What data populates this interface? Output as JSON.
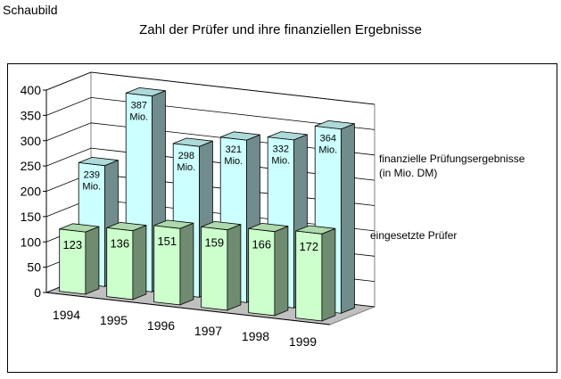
{
  "caption": "Schaubild",
  "chart_data": {
    "type": "bar",
    "title": "Zahl der Prüfer und ihre finanziellen Ergebnisse",
    "categories": [
      "1994",
      "1995",
      "1996",
      "1997",
      "1998",
      "1999"
    ],
    "ylim": [
      0,
      400
    ],
    "yticks": [
      "0",
      "50",
      "100",
      "150",
      "200",
      "250",
      "300",
      "350",
      "400"
    ],
    "series": [
      {
        "name": "finanzielle Prüfungsergebnisse (in Mio. DM)",
        "legend_lines": [
          "finanzielle Prüfungsergebnisse",
          "(in Mio. DM)"
        ],
        "values": [
          239,
          387,
          298,
          321,
          332,
          364
        ],
        "labels": [
          "239 Mio.",
          "387 Mio.",
          "298 Mio.",
          "321 Mio.",
          "332 Mio.",
          "364 Mio."
        ],
        "color": "#ccffff"
      },
      {
        "name": "eingesetzte Prüfer",
        "values": [
          123,
          136,
          151,
          159,
          166,
          172
        ],
        "labels": [
          "123",
          "136",
          "151",
          "159",
          "166",
          "172"
        ],
        "color": "#ccffcc"
      }
    ]
  }
}
